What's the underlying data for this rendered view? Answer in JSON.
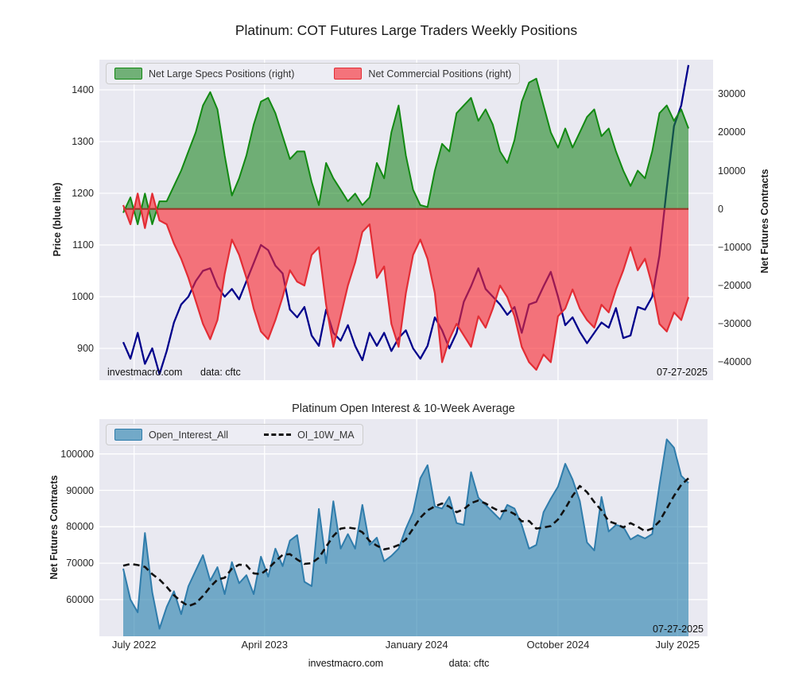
{
  "figure": {
    "title": "Platinum: COT Futures Large Traders Weekly Positions",
    "background": "#ffffff",
    "plot_background": "#e9e9f1",
    "grid_color": "#ffffff"
  },
  "top_chart": {
    "y_left_label": "Price (blue line)",
    "y_right_label": "Net Futures Contracts",
    "y_left_ticks": [
      900,
      1000,
      1100,
      1200,
      1300,
      1400
    ],
    "y_right_ticks": [
      30000,
      20000,
      10000,
      0,
      -10000,
      -20000,
      -30000,
      -40000
    ],
    "legend": [
      {
        "label": "Net Large Specs Positions (right)",
        "fill": "rgba(30,135,35,0.6)",
        "edge": "#128912",
        "type": "patch"
      },
      {
        "label": "Net Commercial Positions (right)",
        "fill": "rgba(248,40,48,0.62)",
        "edge": "#e22d35",
        "type": "patch"
      }
    ],
    "annotations": {
      "watermark": "investmacro.com",
      "source": "data: cftc",
      "date": "07-27-2025"
    }
  },
  "bottom_chart": {
    "title": "Platinum Open Interest & 10-Week Average",
    "y_label": "Net Futures Contracts",
    "y_ticks": [
      60000,
      70000,
      80000,
      90000,
      100000
    ],
    "legend": [
      {
        "label": "Open_Interest_All",
        "fill": "rgba(39,128,172,0.62)",
        "edge": "#2f7cab",
        "type": "patch"
      },
      {
        "label": "OI_10W_MA",
        "edge": "#111111",
        "type": "dash"
      }
    ],
    "annotations": {
      "date": "07-27-2025"
    }
  },
  "x_axis": {
    "tick_labels": [
      "July 2022",
      "April 2023",
      "January 2024",
      "October 2024",
      "July 2025"
    ],
    "tick_weeks": [
      3,
      39,
      81,
      120,
      153
    ]
  },
  "footer": {
    "watermark": "investmacro.com",
    "source": "data: cftc"
  },
  "chart_data": [
    {
      "type": "line+area",
      "title": "Platinum: COT Futures Large Traders Weekly Positions",
      "x_label_range": [
        "July 2022",
        "July 2025"
      ],
      "x_unit": "weeks since start",
      "weeks": [
        0,
        2,
        4,
        6,
        8,
        10,
        12,
        14,
        16,
        18,
        20,
        22,
        24,
        26,
        28,
        30,
        32,
        34,
        36,
        38,
        40,
        42,
        44,
        46,
        48,
        50,
        52,
        54,
        56,
        58,
        60,
        62,
        64,
        66,
        68,
        70,
        72,
        74,
        76,
        78,
        80,
        82,
        84,
        86,
        88,
        90,
        92,
        94,
        96,
        98,
        100,
        102,
        104,
        106,
        108,
        110,
        112,
        114,
        116,
        118,
        120,
        122,
        124,
        126,
        128,
        130,
        132,
        134,
        136,
        138,
        140,
        142,
        144,
        146,
        148,
        150,
        152,
        154,
        156
      ],
      "y_left_range": [
        838,
        1458
      ],
      "y_right_range": [
        -44800,
        39000
      ],
      "grid": true,
      "legend_position": "upper-left-row",
      "series": [
        {
          "name": "Net Large Specs Positions",
          "axis": "right",
          "style": "area",
          "color": "#128912",
          "values": [
            -1000,
            3000,
            -4000,
            4000,
            -4000,
            2000,
            2000,
            6000,
            10000,
            15000,
            20000,
            27000,
            30500,
            26000,
            14000,
            3500,
            8000,
            14000,
            22000,
            28000,
            29000,
            25000,
            19000,
            13000,
            15000,
            15000,
            7000,
            1000,
            12000,
            8000,
            5000,
            2000,
            4000,
            1000,
            3000,
            12000,
            8000,
            20000,
            27000,
            14000,
            5000,
            1000,
            500,
            10000,
            17000,
            15000,
            25000,
            27000,
            29000,
            23000,
            26000,
            22000,
            15000,
            12000,
            18000,
            28000,
            33000,
            34000,
            27000,
            20000,
            16000,
            21000,
            16000,
            20000,
            24000,
            26000,
            19000,
            21000,
            15000,
            10000,
            6000,
            10000,
            8000,
            15000,
            25000,
            27000,
            23000,
            26000,
            21000
          ]
        },
        {
          "name": "Net Commercial Positions",
          "axis": "right",
          "style": "area",
          "color": "#e22d35",
          "values": [
            1000,
            -4000,
            4000,
            -5000,
            4000,
            -3000,
            -4000,
            -9000,
            -13000,
            -18000,
            -24000,
            -30000,
            -34000,
            -29000,
            -17000,
            -8000,
            -12000,
            -18000,
            -26000,
            -32000,
            -34000,
            -29000,
            -23000,
            -16000,
            -19000,
            -20000,
            -12000,
            -10000,
            -25000,
            -36000,
            -28000,
            -20000,
            -14000,
            -6000,
            -4000,
            -18000,
            -15000,
            -30000,
            -36000,
            -22000,
            -12000,
            -8000,
            -13000,
            -22000,
            -40000,
            -34000,
            -30000,
            -33000,
            -36000,
            -28000,
            -31000,
            -26000,
            -20000,
            -23000,
            -28000,
            -36000,
            -40000,
            -42000,
            -38000,
            -40000,
            -28000,
            -26000,
            -21000,
            -26000,
            -29000,
            -31000,
            -25000,
            -27000,
            -21000,
            -16000,
            -10000,
            -16000,
            -13000,
            -20000,
            -30000,
            -32000,
            -27000,
            -29000,
            -23000
          ]
        },
        {
          "name": "Price",
          "axis": "left",
          "style": "line",
          "color": "#00008b",
          "values": [
            912,
            880,
            930,
            870,
            900,
            850,
            895,
            950,
            985,
            1000,
            1030,
            1050,
            1055,
            1020,
            1000,
            1015,
            995,
            1030,
            1065,
            1100,
            1090,
            1060,
            1045,
            975,
            960,
            980,
            925,
            905,
            975,
            930,
            915,
            945,
            905,
            877,
            930,
            905,
            930,
            895,
            920,
            935,
            900,
            880,
            905,
            960,
            935,
            900,
            930,
            990,
            1020,
            1055,
            1015,
            1000,
            985,
            965,
            980,
            930,
            985,
            990,
            1020,
            1048,
            1000,
            945,
            960,
            932,
            910,
            930,
            950,
            940,
            978,
            920,
            925,
            980,
            975,
            1000,
            1080,
            1210,
            1330,
            1370,
            1448
          ]
        }
      ]
    },
    {
      "type": "area",
      "title": "Platinum Open Interest & 10-Week Average",
      "x_label_range": [
        "July 2022",
        "July 2025"
      ],
      "x_unit": "weeks since start",
      "weeks": [
        0,
        2,
        4,
        6,
        8,
        10,
        12,
        14,
        16,
        18,
        20,
        22,
        24,
        26,
        28,
        30,
        32,
        34,
        36,
        38,
        40,
        42,
        44,
        46,
        48,
        50,
        52,
        54,
        56,
        58,
        60,
        62,
        64,
        66,
        68,
        70,
        72,
        74,
        76,
        78,
        80,
        82,
        84,
        86,
        88,
        90,
        92,
        94,
        96,
        98,
        100,
        102,
        104,
        106,
        108,
        110,
        112,
        114,
        116,
        118,
        120,
        122,
        124,
        126,
        128,
        130,
        132,
        134,
        136,
        138,
        140,
        142,
        144,
        146,
        148,
        150,
        152,
        154,
        156
      ],
      "ylim": [
        49900,
        109600
      ],
      "grid": true,
      "series": [
        {
          "name": "Open_Interest_All",
          "style": "area",
          "color": "#2f7cab",
          "values": [
            68500,
            60000,
            56500,
            78300,
            62000,
            52000,
            58000,
            62300,
            56000,
            63700,
            68000,
            72200,
            65200,
            68900,
            61500,
            70300,
            64500,
            66700,
            61500,
            71800,
            66300,
            74000,
            69200,
            76200,
            77700,
            64900,
            63700,
            84900,
            70000,
            87000,
            74000,
            78000,
            74000,
            86000,
            75000,
            77000,
            70500,
            72000,
            74000,
            79500,
            84000,
            93300,
            96900,
            85600,
            85000,
            88200,
            81000,
            80500,
            95000,
            88000,
            86000,
            84000,
            82000,
            86000,
            85000,
            80500,
            74000,
            75000,
            84000,
            87700,
            91000,
            97300,
            93000,
            87100,
            75700,
            73500,
            88200,
            78700,
            80500,
            80000,
            76500,
            77700,
            76800,
            78000,
            91400,
            104000,
            101700,
            94000,
            92000
          ]
        },
        {
          "name": "OI_10W_MA",
          "style": "dashed-line",
          "color": "#111111",
          "values": [
            69300,
            69800,
            69500,
            69000,
            67000,
            65500,
            63500,
            61200,
            59500,
            58200,
            59000,
            61000,
            63500,
            65500,
            66000,
            68500,
            69600,
            69400,
            67200,
            67000,
            68500,
            70500,
            72300,
            72500,
            71000,
            69800,
            70000,
            71500,
            74500,
            77500,
            79500,
            79800,
            79500,
            78500,
            76100,
            74800,
            73800,
            74200,
            75000,
            76500,
            79500,
            82500,
            84500,
            85600,
            86400,
            85500,
            84000,
            84800,
            86500,
            87200,
            86400,
            85200,
            84200,
            84500,
            83500,
            81500,
            81600,
            79500,
            79800,
            80200,
            82000,
            85000,
            88500,
            91200,
            89500,
            86800,
            84500,
            81500,
            80800,
            79800,
            81000,
            80000,
            78800,
            79500,
            81500,
            85000,
            88500,
            91500,
            93300
          ]
        }
      ]
    }
  ]
}
